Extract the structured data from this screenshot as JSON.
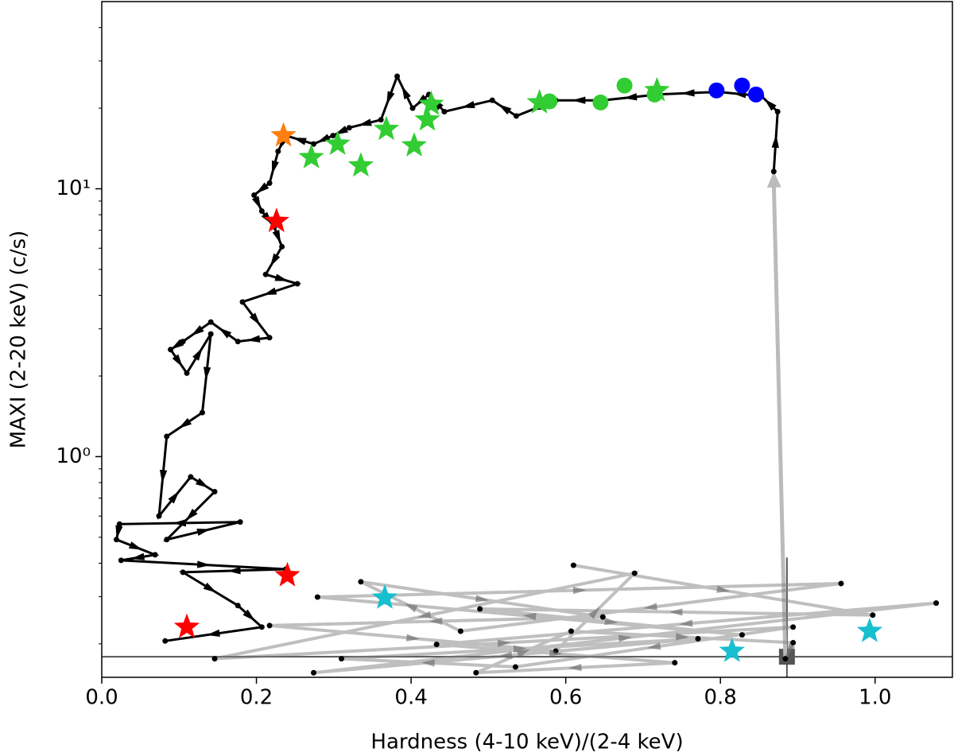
{
  "chart_data": {
    "type": "scatter",
    "x_label": "Hardness (4-10 keV)/(2-4 keV)",
    "y_label": "MAXI (2-20 keV) (c/s)",
    "xlim": [
      0,
      1.1
    ],
    "ylim": [
      0.15,
      50
    ],
    "log_y": true,
    "xticks": [
      {
        "value": 0,
        "label": "0.0"
      },
      0.2,
      0.4,
      0.6,
      0.8,
      {
        "value": 1,
        "label": "1.0"
      }
    ],
    "yticks": [
      {
        "value": 1,
        "label": "10⁰"
      },
      {
        "value": 10,
        "label": "10¹"
      }
    ],
    "yminor": [
      0.2,
      0.3,
      0.4,
      0.5,
      0.6,
      0.7,
      0.8,
      0.9,
      2,
      3,
      4,
      5,
      6,
      7,
      8,
      9,
      20,
      30,
      40
    ],
    "series": [
      {
        "marker": "track",
        "color": "#000000",
        "opacity": 1,
        "x": [
          0.869,
          0.874,
          0.853,
          0.797,
          0.72,
          0.648,
          0.587,
          0.536,
          0.505,
          0.443,
          0.423,
          0.402,
          0.382,
          0.361,
          0.32,
          0.299,
          0.274,
          0.238,
          0.228,
          0.217,
          0.197,
          0.207,
          0.223,
          0.233,
          0.212,
          0.253,
          0.182,
          0.217,
          0.176,
          0.141,
          0.105,
          0.089,
          0.11,
          0.141,
          0.13,
          0.084,
          0.074,
          0.115,
          0.146,
          0.084,
          0.179,
          0.023,
          0.019,
          0.069,
          0.025,
          0.238,
          0.105,
          0.176,
          0.207,
          0.082
        ],
        "values": [
          11.6,
          19.4,
          22.2,
          23.0,
          22.5,
          21.4,
          21.4,
          18.7,
          21.4,
          19.4,
          22.5,
          20.0,
          26.3,
          18.1,
          16.9,
          15.8,
          14.7,
          15.8,
          13.8,
          10.5,
          9.47,
          8.26,
          7.21,
          6.08,
          4.79,
          4.42,
          3.78,
          2.78,
          2.69,
          3.18,
          2.69,
          2.51,
          2.05,
          2.87,
          1.46,
          1.19,
          0.6,
          0.84,
          0.74,
          0.49,
          0.57,
          0.56,
          0.49,
          0.43,
          0.41,
          0.38,
          0.37,
          0.278,
          0.231,
          0.205
        ]
      },
      {
        "marker": "track",
        "color": "#808080",
        "opacity": 0.5,
        "x": [
          0.61,
          0.997,
          0.489,
          0.828,
          0.279,
          0.956,
          0.464,
          0.335,
          0.648,
          0.217,
          0.587,
          0.689,
          0.146,
          0.894,
          0.535,
          0.31,
          0.771,
          0.274,
          1.079,
          0.433,
          0.741,
          0.484,
          0.607,
          0.894,
          0.884
        ],
        "values": [
          0.393,
          0.256,
          0.27,
          0.216,
          0.299,
          0.336,
          0.223,
          0.341,
          0.252,
          0.234,
          0.188,
          0.367,
          0.176,
          0.231,
          0.164,
          0.176,
          0.209,
          0.156,
          0.284,
          0.199,
          0.17,
          0.156,
          0.223,
          0.202,
          0.176
        ]
      },
      {
        "marker": "star",
        "color": "#ff7f0e",
        "x": [
          0.235
        ],
        "values": [
          15.8
        ]
      },
      {
        "marker": "star",
        "color": "#32cd32",
        "x": [
          0.271,
          0.305,
          0.335,
          0.368,
          0.404,
          0.421,
          0.426,
          0.566,
          0.718
        ],
        "values": [
          13.1,
          14.7,
          12.2,
          16.7,
          14.5,
          18.1,
          20.7,
          21.0,
          23.3
        ]
      },
      {
        "marker": "circle",
        "color": "#32cd32",
        "x": [
          0.579,
          0.645,
          0.676,
          0.715
        ],
        "values": [
          21.2,
          21.0,
          24.3,
          22.5
        ]
      },
      {
        "marker": "circle",
        "color": "#0000ff",
        "x": [
          0.795,
          0.828,
          0.846
        ],
        "values": [
          23.3,
          24.3,
          22.5
        ]
      },
      {
        "marker": "star",
        "color": "#ff0000",
        "x": [
          0.226,
          0.24,
          0.11
        ],
        "values": [
          7.57,
          0.36,
          0.231
        ]
      },
      {
        "marker": "star",
        "color": "#17bfcf",
        "x": [
          0.366,
          0.815,
          0.993
        ],
        "values": [
          0.297,
          0.188,
          0.223
        ]
      }
    ],
    "error_point": {
      "x": 0.886,
      "y": 0.179,
      "xrange": [
        0,
        1.1
      ],
      "yrange": [
        0.15,
        0.42
      ],
      "color": "#555555"
    }
  }
}
